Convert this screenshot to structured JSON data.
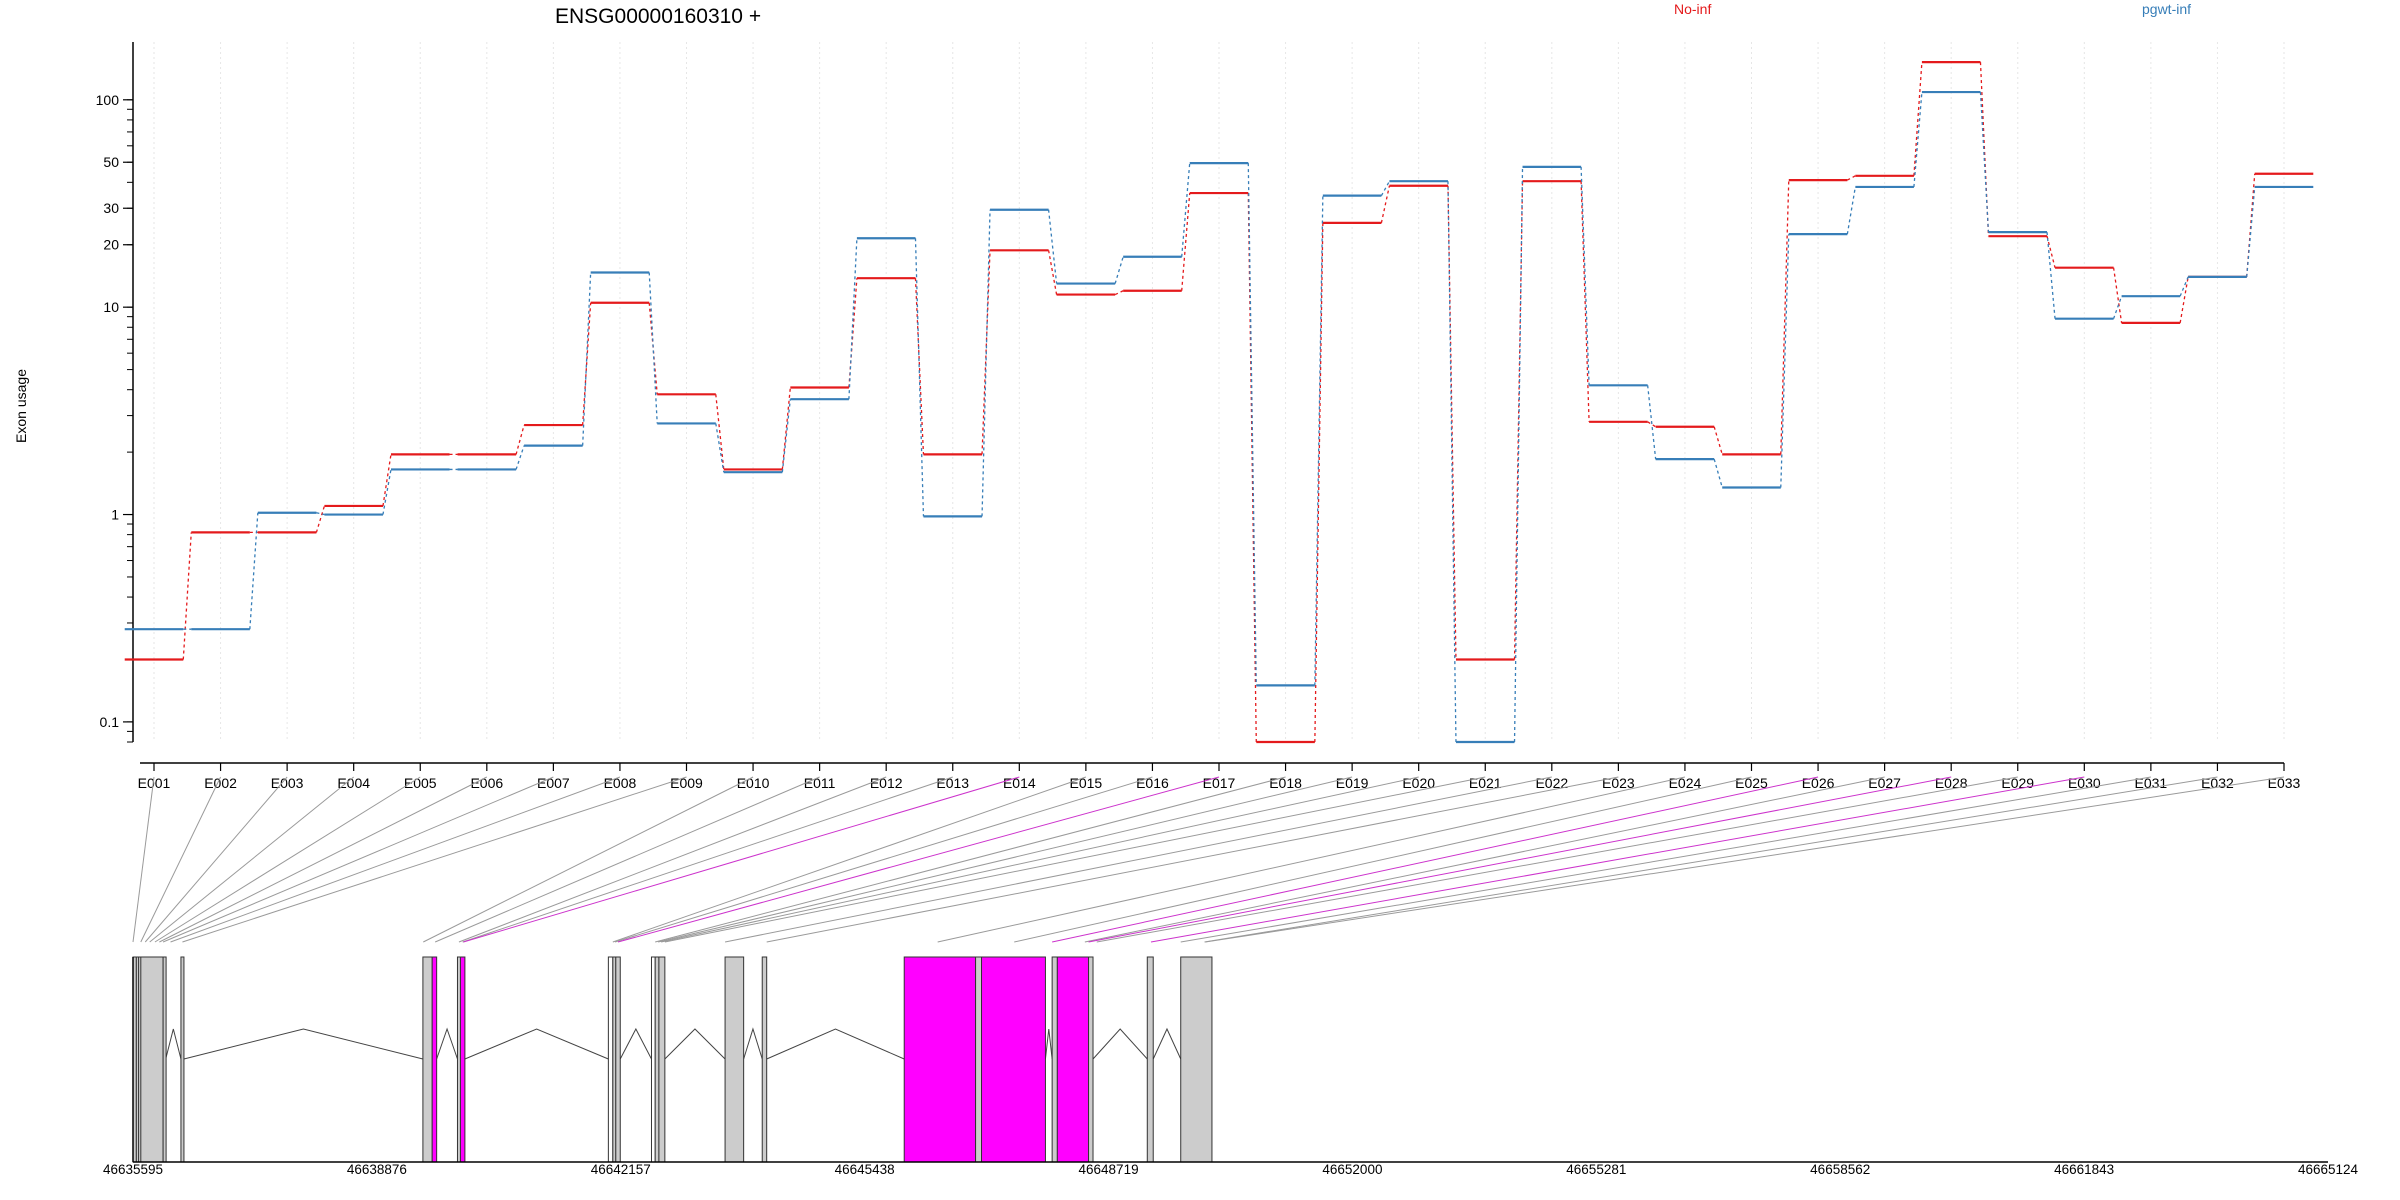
{
  "chart_data": {
    "type": "line",
    "title": "ENSG00000160310 +",
    "ylabel": "Exon usage",
    "xlabel": "",
    "scale": "log",
    "ylim": [
      0.08,
      190
    ],
    "yticks": [
      0.1,
      1,
      10,
      20,
      30,
      50,
      100
    ],
    "ytick_labels": [
      "0.1",
      "1",
      "10",
      "20",
      "30",
      "50",
      "100"
    ],
    "grid": "vertical",
    "legend_position": "top-right",
    "categories": [
      "E001",
      "E002",
      "E003",
      "E004",
      "E005",
      "E006",
      "E007",
      "E008",
      "E009",
      "E010",
      "E011",
      "E012",
      "E013",
      "E014",
      "E015",
      "E016",
      "E017",
      "E018",
      "E019",
      "E020",
      "E021",
      "E022",
      "E023",
      "E024",
      "E025",
      "E026",
      "E027",
      "E028",
      "E029",
      "E030",
      "E031",
      "E032",
      "E033"
    ],
    "series": [
      {
        "name": "No-inf",
        "color": "#e41a1c",
        "values": [
          0.2,
          0.82,
          0.82,
          1.1,
          1.95,
          1.95,
          2.7,
          10.5,
          3.8,
          1.65,
          4.1,
          13.8,
          1.95,
          18.8,
          11.5,
          12.0,
          35.5,
          0.08,
          25.5,
          38.5,
          0.2,
          40.5,
          2.8,
          2.65,
          1.95,
          41.0,
          43.0,
          152.0,
          22.0,
          15.5,
          8.4,
          14.0,
          44.0
        ]
      },
      {
        "name": "pgwt-inf",
        "color": "#377eb8",
        "values": [
          0.28,
          0.28,
          1.02,
          1.0,
          1.65,
          1.65,
          2.15,
          14.7,
          2.75,
          1.6,
          3.6,
          21.5,
          0.98,
          29.5,
          13.0,
          17.5,
          49.5,
          0.15,
          34.5,
          40.5,
          0.08,
          47.5,
          4.2,
          1.85,
          1.35,
          22.5,
          38.0,
          109.0,
          23.0,
          8.8,
          11.3,
          14.0,
          38.0
        ]
      }
    ],
    "gene_model": {
      "coordinate_labels": [
        "46635595",
        "46638876",
        "46642157",
        "46645438",
        "46648719",
        "46652000",
        "46655281",
        "46658562",
        "46661843",
        "46665124"
      ],
      "exons": [
        {
          "start": 46635595,
          "end": 46635640,
          "color": "#cccccc"
        },
        {
          "start": 46635640,
          "end": 46635670,
          "color": "#cccccc"
        },
        {
          "start": 46635670,
          "end": 46635700,
          "color": "#cccccc"
        },
        {
          "start": 46635700,
          "end": 46636000,
          "color": "#cccccc"
        },
        {
          "start": 46636000,
          "end": 46636035,
          "color": "#cccccc"
        },
        {
          "start": 46636240,
          "end": 46636280,
          "color": "#cccccc"
        },
        {
          "start": 46639495,
          "end": 46639620,
          "color": "#cccccc"
        },
        {
          "start": 46639620,
          "end": 46639680,
          "color": "#ff00ff"
        },
        {
          "start": 46639960,
          "end": 46640000,
          "color": "#cccccc"
        },
        {
          "start": 46640000,
          "end": 46640060,
          "color": "#ff00ff"
        },
        {
          "start": 46641990,
          "end": 46642050,
          "color": "#ffffff"
        },
        {
          "start": 46642050,
          "end": 46642090,
          "color": "#cccccc"
        },
        {
          "start": 46642090,
          "end": 46642150,
          "color": "#cccccc"
        },
        {
          "start": 46642570,
          "end": 46642620,
          "color": "#ffffff"
        },
        {
          "start": 46642620,
          "end": 46642670,
          "color": "#cccccc"
        },
        {
          "start": 46642670,
          "end": 46642750,
          "color": "#cccccc"
        },
        {
          "start": 46643560,
          "end": 46643810,
          "color": "#cccccc"
        },
        {
          "start": 46644060,
          "end": 46644120,
          "color": "#cccccc"
        },
        {
          "start": 46645970,
          "end": 46646930,
          "color": "#ff00ff"
        },
        {
          "start": 46646930,
          "end": 46647010,
          "color": "#cccccc"
        },
        {
          "start": 46647010,
          "end": 46647870,
          "color": "#ff00ff"
        },
        {
          "start": 46647960,
          "end": 46648030,
          "color": "#cccccc"
        },
        {
          "start": 46648030,
          "end": 46648450,
          "color": "#ff00ff"
        },
        {
          "start": 46648450,
          "end": 46648510,
          "color": "#cccccc"
        },
        {
          "start": 46649240,
          "end": 46649320,
          "color": "#cccccc"
        },
        {
          "start": 46649690,
          "end": 46650110,
          "color": "#cccccc"
        }
      ]
    }
  }
}
